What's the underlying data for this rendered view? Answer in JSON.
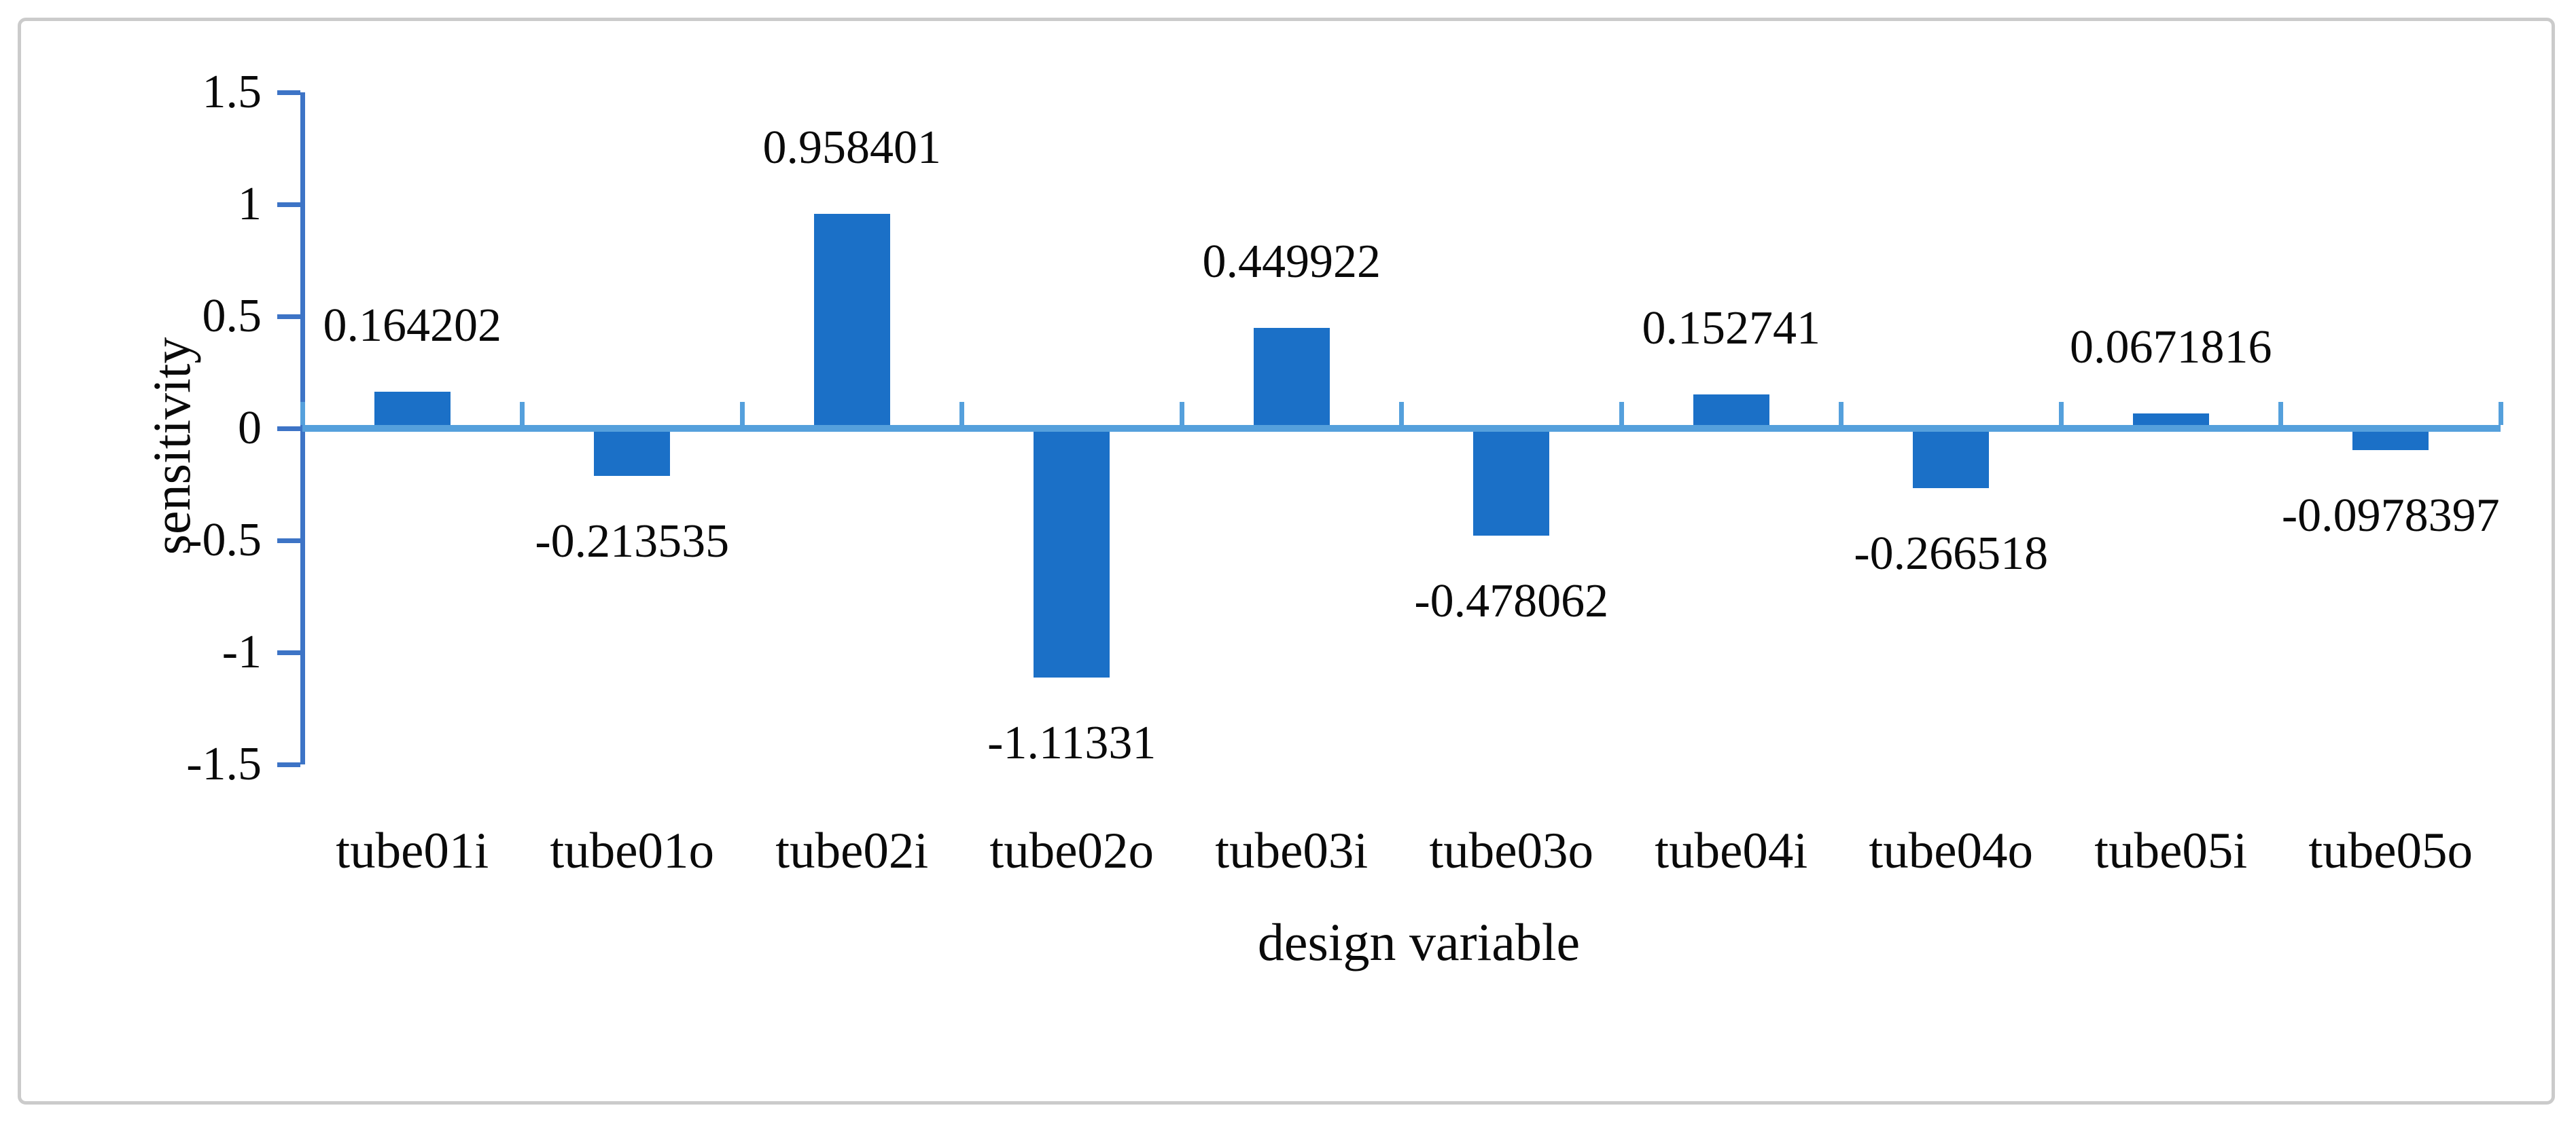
{
  "figure": {
    "background_color": "#ffffff",
    "border_color": "#cbcbcb"
  },
  "chart_data": {
    "type": "bar",
    "title": "",
    "xlabel": "design variable",
    "ylabel": "sensitivity",
    "categories": [
      "tube01i",
      "tube01o",
      "tube02i",
      "tube02o",
      "tube03i",
      "tube03o",
      "tube04i",
      "tube04o",
      "tube05i",
      "tube05o"
    ],
    "values": [
      0.164202,
      -0.213535,
      0.958401,
      -1.11331,
      0.449922,
      -0.478062,
      0.152741,
      -0.266518,
      0.0671816,
      -0.0978397
    ],
    "data_labels": [
      "0.164202",
      "-0.213535",
      "0.958401",
      "-1.11331",
      "0.449922",
      "-0.478062",
      "0.152741",
      "-0.266518",
      "0.0671816",
      "-0.0978397"
    ],
    "ylim": [
      -1.5,
      1.5
    ],
    "ytick_step": 0.5,
    "ytick_labels": [
      "1.5",
      "1",
      "0.5",
      "0",
      "-0.5",
      "-1",
      "-1.5"
    ],
    "grid": false,
    "legend_position": "none",
    "bar_color": "#1b70c7",
    "value_axis_color": "#3d74c6",
    "category_axis_color": "#55a0dc",
    "label_color": "#0a0a0a"
  }
}
